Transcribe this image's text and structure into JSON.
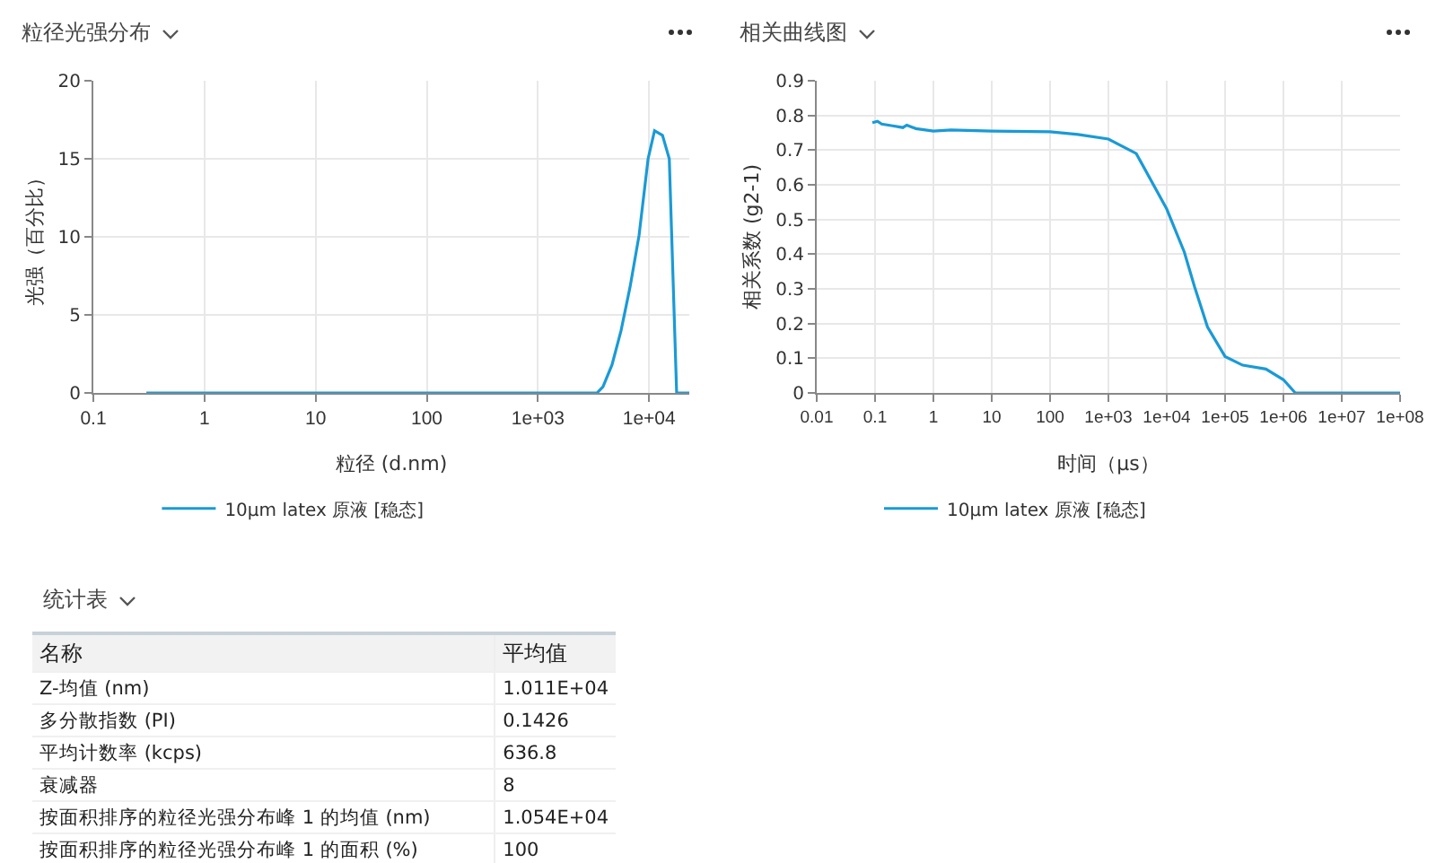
{
  "chart_data": [
    {
      "type": "line",
      "title": "粒径光强分布",
      "xlabel": "粒径 (d.nm)",
      "ylabel": "光强（百分比）",
      "log": "x",
      "grid": true,
      "legend": "bottom",
      "marker": "none",
      "line_style": "solid",
      "xlim": [
        0.1,
        23000
      ],
      "xticks": [
        0.1,
        1,
        10,
        100,
        {
          "value": 1000,
          "label": "1e+03"
        },
        {
          "value": 10000,
          "label": "1e+04"
        }
      ],
      "ylim": [
        0,
        20
      ],
      "yticks": [
        0,
        5,
        10,
        15,
        20
      ],
      "series": [
        {
          "name": "10µm latex 原液 [稳态]",
          "color": "#1a9ad6",
          "x": [
            0.3,
            3400,
            3850,
            4640,
            5600,
            6750,
            8130,
            9800,
            11200,
            13200,
            15200,
            17700,
            23000
          ],
          "values": [
            0,
            0,
            0.4,
            1.8,
            4.0,
            6.8,
            10.1,
            15.0,
            16.8,
            16.5,
            15.0,
            0,
            0
          ]
        }
      ]
    },
    {
      "type": "line",
      "title": "相关曲线图",
      "xlabel": "时间（µs）",
      "ylabel": "相关系数 (g2-1)",
      "log": "x",
      "grid": true,
      "legend": "bottom",
      "marker": "none",
      "line_style": "solid",
      "xlim": [
        0.01,
        100000000
      ],
      "xticks": [
        0.01,
        0.1,
        1,
        10,
        100,
        {
          "value": 1000,
          "label": "1e+03"
        },
        {
          "value": 10000,
          "label": "1e+04"
        },
        {
          "value": 100000,
          "label": "1e+05"
        },
        {
          "value": 1000000,
          "label": "1e+06"
        },
        {
          "value": 10000000,
          "label": "1e+07"
        },
        {
          "value": 100000000,
          "label": "1e+08"
        }
      ],
      "ylim": [
        0,
        0.9
      ],
      "yticks": [
        0,
        0.1,
        0.2,
        0.3,
        0.4,
        0.5,
        0.6,
        0.7,
        0.8,
        0.9
      ],
      "series": [
        {
          "name": "10µm latex 原液 [稳态]",
          "color": "#1a9ad6",
          "x": [
            0.09,
            0.11,
            0.13,
            0.2,
            0.3,
            0.35,
            0.5,
            1,
            2,
            10,
            100,
            300,
            1000,
            3000,
            10000,
            20000,
            30000,
            50000,
            100000,
            200000,
            500000,
            1000000,
            1600000,
            100000000
          ],
          "values": [
            0.779,
            0.783,
            0.775,
            0.77,
            0.765,
            0.772,
            0.762,
            0.755,
            0.758,
            0.755,
            0.753,
            0.745,
            0.732,
            0.69,
            0.53,
            0.406,
            0.306,
            0.19,
            0.105,
            0.08,
            0.069,
            0.038,
            0,
            0
          ]
        }
      ]
    },
    {
      "type": "other",
      "title": "统计表",
      "annotations": [
        "名称",
        "平均值",
        "Z-均值 (nm)",
        "1.011E+04",
        "多分散指数 (PI)",
        "0.1426",
        "平均计数率 (kcps)",
        "636.8",
        "衰减器",
        "8",
        "按面积排序的粒径光强分布峰 1 的均值 (nm)",
        "1.054E+04",
        "按面积排序的粒径光强分布峰 1 的面积 (%)",
        "100"
      ]
    }
  ]
}
